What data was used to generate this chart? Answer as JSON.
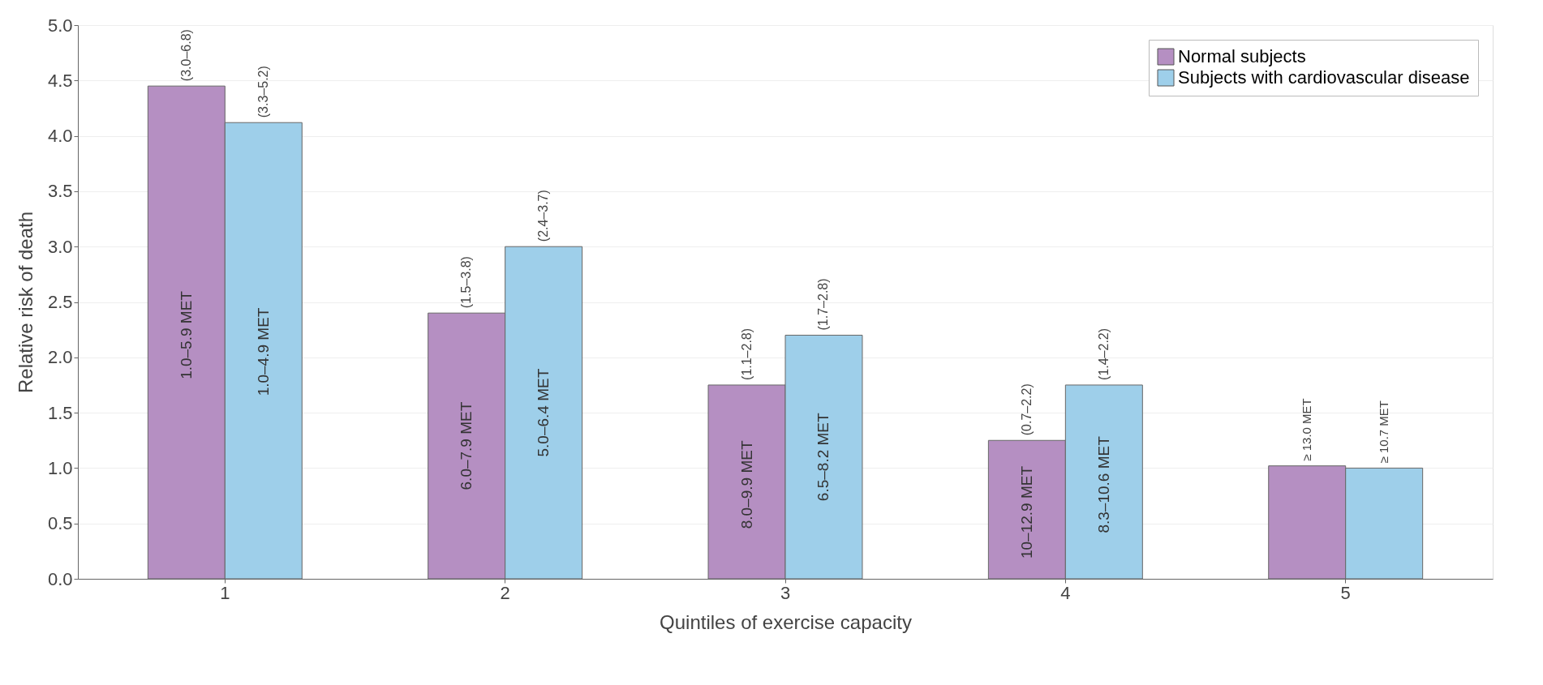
{
  "chart_data": {
    "type": "bar",
    "xlabel": "Quintiles of exercise capacity",
    "ylabel": "Relative risk of death",
    "categories": [
      "1",
      "2",
      "3",
      "4",
      "5"
    ],
    "series": [
      {
        "name": "Normal subjects",
        "color": "#b58fc2",
        "values": [
          4.45,
          2.4,
          1.75,
          1.25,
          1.02
        ],
        "value_labels": [
          "(3.0–6.8)",
          "(1.5–3.8)",
          "(1.1–2.8)",
          "(0.7–2.2)",
          null
        ]
      },
      {
        "name": "Subjects with cardiovascular disease",
        "color": "#9ecfea",
        "values": [
          4.12,
          3.0,
          2.2,
          1.75,
          1.0
        ],
        "value_labels": [
          "(3.3–5.2)",
          "(2.4–3.7)",
          "(1.7–2.8)",
          "(1.4–2.2)",
          null
        ]
      }
    ],
    "annotations": [
      {
        "text": "1.0–5.9 MET",
        "x": "1",
        "y": 2.2
      },
      {
        "text": "1.0–4.9 MET",
        "x": "1",
        "y": 2.05
      },
      {
        "text": "6.0–7.9 MET",
        "x": "2",
        "y": 1.2
      },
      {
        "text": "5.0–6.4 MET",
        "x": "2",
        "y": 1.5
      },
      {
        "text": "8.0–9.9 MET",
        "x": "3",
        "y": 0.85
      },
      {
        "text": "6.5–8.2 MET",
        "x": "3",
        "y": 1.1
      },
      {
        "text": "10–12.9 MET",
        "x": "4",
        "y": 0.6
      },
      {
        "text": "8.3–10.6 MET",
        "x": "4",
        "y": 0.85
      },
      {
        "text": "≥ 13.0 MET",
        "x": "5",
        "y": 1.02
      },
      {
        "text": "≥ 10.7 MET",
        "x": "5",
        "y": 1.0
      }
    ],
    "ylim": [
      0,
      5.0
    ],
    "yticks": [
      {
        "value": 0,
        "label": "0.0"
      },
      0.5,
      {
        "value": 1,
        "label": "1.0"
      },
      1.5,
      {
        "value": 2,
        "label": "2.0"
      },
      2.5,
      {
        "value": 3,
        "label": "3.0"
      },
      3.5,
      {
        "value": 4,
        "label": "4.0"
      },
      4.5,
      {
        "value": 5,
        "label": "5.0"
      }
    ],
    "grid": "y",
    "legend": "top right"
  }
}
